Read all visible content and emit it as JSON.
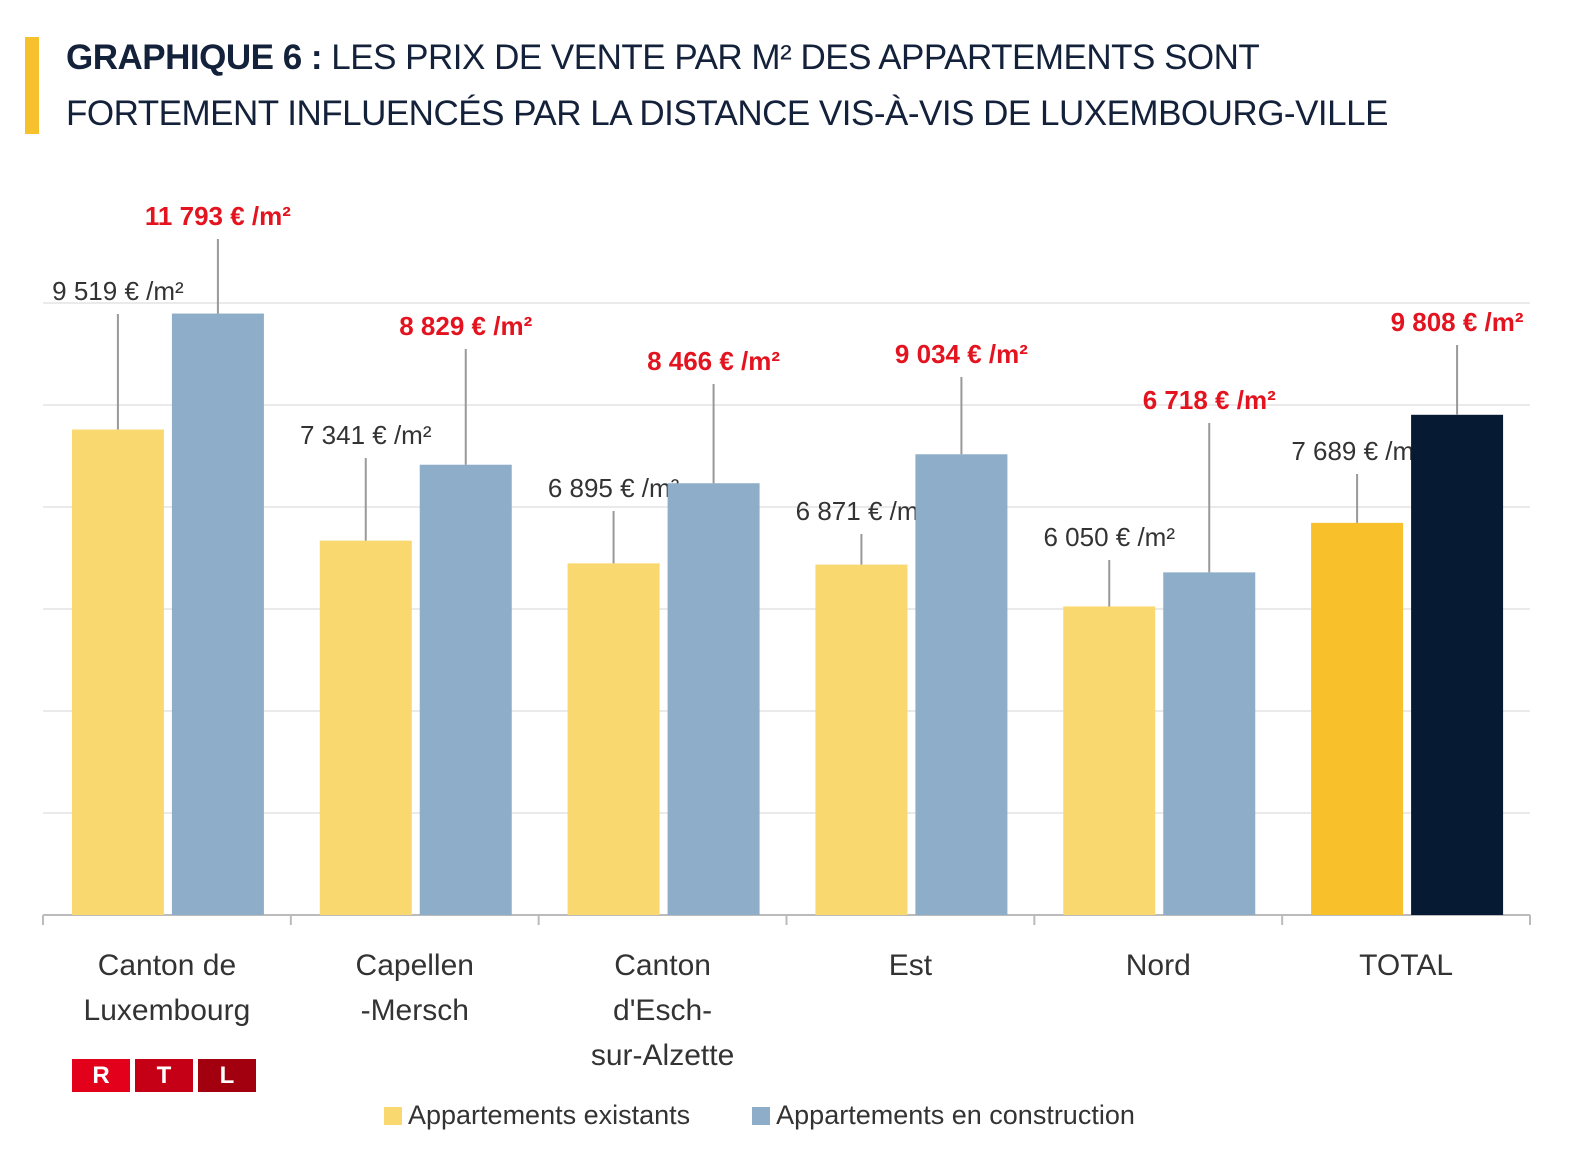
{
  "title": {
    "bold": "GRAPHIQUE 6 :",
    "line1": " LES PRIX DE VENTE PAR M² DES APPARTEMENTS SONT",
    "line2": "FORTEMENT INFLUENCÉS PAR LA DISTANCE VIS-À-VIS DE LUXEMBOURG-VILLE"
  },
  "logo": {
    "letters": [
      "R",
      "T",
      "L"
    ],
    "colors": [
      "#e2001a",
      "#c50016",
      "#a3000f"
    ]
  },
  "chart_data": {
    "type": "bar",
    "categories": [
      "Canton de Luxembourg",
      "Capellen -Mersch",
      "Canton d'Esch-sur-Alzette",
      "Est",
      "Nord",
      "TOTAL"
    ],
    "category_lines": [
      [
        "Canton de",
        "Luxembourg"
      ],
      [
        "Capellen",
        "-Mersch"
      ],
      [
        "Canton",
        "d'Esch-",
        "sur-Alzette"
      ],
      [
        "Est"
      ],
      [
        "Nord"
      ],
      [
        "TOTAL"
      ]
    ],
    "series": [
      {
        "name": "Appartements existants",
        "values": [
          9519,
          7341,
          6895,
          6871,
          6050,
          7689
        ],
        "labels": [
          "9 519 € /m²",
          "7 341 € /m²",
          "6 895 € /m²",
          "6 871 € /m²",
          "6 050 € /m²",
          "7 689 € /m²"
        ],
        "color": "#f9d870",
        "total_color": "#f8c02b",
        "label_color": "#333333"
      },
      {
        "name": "Appartements en construction",
        "values": [
          11793,
          8829,
          8466,
          9034,
          6718,
          9808
        ],
        "labels": [
          "11 793 € /m²",
          "8 829 € /m²",
          "8 466 € /m²",
          "9 034 € /m²",
          "6 718 € /m²",
          "9 808 € /m²"
        ],
        "color": "#8eadc8",
        "total_color": "#061a33",
        "label_color": "#e3141f"
      }
    ],
    "ylim": [
      0,
      12000
    ],
    "grid": true,
    "y_tick_labels_shown": false,
    "legend": "bottom"
  }
}
